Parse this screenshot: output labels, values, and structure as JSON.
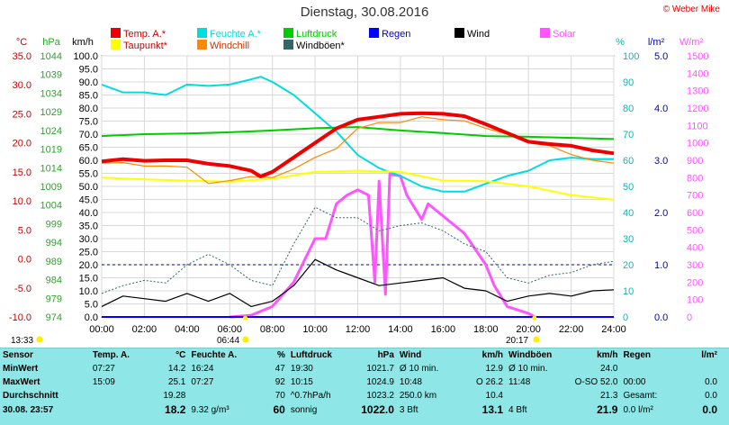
{
  "title": "Dienstag, 30.08.2016",
  "copyright": "© Weber Mike",
  "legend": [
    {
      "label": "Temp. A.*",
      "color": "#ee0000"
    },
    {
      "label": "Feuchte A.*",
      "color": "#00dddd"
    },
    {
      "label": "Luftdruck",
      "color": "#00cc00"
    },
    {
      "label": "Regen",
      "color": "#0000ff"
    },
    {
      "label": "Wind",
      "color": "#000000"
    },
    {
      "label": "Solar",
      "color": "#ff55ff"
    },
    {
      "label": "Taupunkt*",
      "color": "#ffff00"
    },
    {
      "label": "Windchill",
      "color": "#ff8800"
    },
    {
      "label": "Windböen*",
      "color": "#336666"
    }
  ],
  "axis_units": {
    "temp": "°C",
    "pressure": "hPa",
    "wind": "km/h",
    "humidity": "%",
    "rain": "l/m²",
    "solar": "W/m²"
  },
  "axis_ticks": {
    "temp": [
      "35.0",
      "30.0",
      "25.0",
      "20.0",
      "15.0",
      "10.0",
      "5.0",
      "0.0",
      "-5.0",
      "-10.0"
    ],
    "pressure": [
      "1044",
      "1039",
      "1034",
      "1029",
      "1024",
      "1019",
      "1014",
      "1009",
      "1004",
      "999",
      "994",
      "989",
      "984",
      "979",
      "974"
    ],
    "wind": [
      "100.0",
      "95.0",
      "90.0",
      "85.0",
      "80.0",
      "75.0",
      "70.0",
      "65.0",
      "60.0",
      "55.0",
      "50.0",
      "45.0",
      "40.0",
      "35.0",
      "30.0",
      "25.0",
      "20.0",
      "15.0",
      "10.0",
      "5.0",
      "0.0"
    ],
    "humidity": [
      "100",
      "90",
      "80",
      "70",
      "60",
      "50",
      "40",
      "30",
      "20",
      "10",
      "0"
    ],
    "rain": [
      "5.0",
      "4.0",
      "3.0",
      "2.0",
      "1.0",
      "0.0"
    ],
    "solar": [
      "1500",
      "1400",
      "1300",
      "1200",
      "1100",
      "1000",
      "900",
      "800",
      "700",
      "600",
      "500",
      "400",
      "300",
      "200",
      "100",
      "0"
    ],
    "time": [
      "00:00",
      "02:00",
      "04:00",
      "06:00",
      "08:00",
      "10:00",
      "12:00",
      "14:00",
      "16:00",
      "18:00",
      "20:00",
      "22:00",
      "24:00"
    ]
  },
  "sun": {
    "sunrise": "06:44",
    "sunset": "20:17",
    "moonrise": "13:33"
  },
  "chart_data": {
    "type": "line",
    "x_unit": "hour",
    "xlim": [
      0,
      24
    ],
    "series": [
      {
        "name": "Temp. A.*",
        "axis": "temp",
        "ylim": [
          -10,
          35
        ],
        "color": "#ee0000",
        "points": [
          [
            0,
            16.8
          ],
          [
            1,
            17.2
          ],
          [
            2,
            16.9
          ],
          [
            3,
            17
          ],
          [
            4,
            17
          ],
          [
            5,
            16.4
          ],
          [
            6,
            16
          ],
          [
            7,
            15.2
          ],
          [
            7.45,
            14.2
          ],
          [
            8,
            15
          ],
          [
            9,
            17.5
          ],
          [
            10,
            20
          ],
          [
            11,
            22.5
          ],
          [
            12,
            24
          ],
          [
            13,
            24.5
          ],
          [
            14,
            25
          ],
          [
            15,
            25.1
          ],
          [
            16,
            25
          ],
          [
            17,
            24.6
          ],
          [
            18,
            23.2
          ],
          [
            19,
            21.7
          ],
          [
            20,
            20.2
          ],
          [
            21,
            19.8
          ],
          [
            22,
            19.5
          ],
          [
            23,
            18.7
          ],
          [
            24,
            18.2
          ]
        ]
      },
      {
        "name": "Taupunkt*",
        "axis": "temp",
        "ylim": [
          -10,
          35
        ],
        "color": "#ffff00",
        "points": [
          [
            0,
            14
          ],
          [
            2,
            13.7
          ],
          [
            4,
            13.5
          ],
          [
            6,
            13.3
          ],
          [
            8,
            13.8
          ],
          [
            10,
            15
          ],
          [
            12,
            15.2
          ],
          [
            14,
            15
          ],
          [
            16,
            13.5
          ],
          [
            18,
            13.4
          ],
          [
            20,
            12.5
          ],
          [
            22,
            11
          ],
          [
            24,
            10.2
          ]
        ]
      },
      {
        "name": "Windchill",
        "axis": "temp",
        "ylim": [
          -10,
          35
        ],
        "color": "#ff8800",
        "points": [
          [
            0,
            16.5
          ],
          [
            1,
            16.6
          ],
          [
            2,
            16
          ],
          [
            3,
            16
          ],
          [
            4,
            15.8
          ],
          [
            5,
            13
          ],
          [
            6,
            13.5
          ],
          [
            7,
            14.2
          ],
          [
            8,
            14
          ],
          [
            9,
            15.5
          ],
          [
            10,
            17.5
          ],
          [
            11,
            19
          ],
          [
            12,
            22.5
          ],
          [
            13,
            23.5
          ],
          [
            14,
            23.5
          ],
          [
            15,
            24.5
          ],
          [
            16,
            24
          ],
          [
            17,
            23.8
          ],
          [
            18,
            22.5
          ],
          [
            19,
            21.5
          ],
          [
            20,
            20
          ],
          [
            21,
            19.5
          ],
          [
            22,
            18
          ],
          [
            23,
            17
          ],
          [
            24,
            16.5
          ]
        ]
      },
      {
        "name": "Feuchte A.*",
        "axis": "humidity",
        "ylim": [
          0,
          100
        ],
        "color": "#00dddd",
        "points": [
          [
            0,
            89
          ],
          [
            1,
            86
          ],
          [
            2,
            86
          ],
          [
            3,
            85
          ],
          [
            4,
            89
          ],
          [
            5,
            88.5
          ],
          [
            6,
            89
          ],
          [
            7,
            91
          ],
          [
            7.45,
            92
          ],
          [
            8,
            90
          ],
          [
            9,
            85
          ],
          [
            10,
            78
          ],
          [
            11,
            71
          ],
          [
            12,
            62
          ],
          [
            13,
            57
          ],
          [
            14,
            54
          ],
          [
            15,
            50
          ],
          [
            16,
            48
          ],
          [
            17,
            48
          ],
          [
            18,
            51
          ],
          [
            19,
            54
          ],
          [
            20,
            56
          ],
          [
            21,
            60
          ],
          [
            22,
            61
          ],
          [
            23,
            60.5
          ],
          [
            24,
            60.5
          ]
        ]
      },
      {
        "name": "Luftdruck",
        "axis": "pressure",
        "ylim": [
          974,
          1044
        ],
        "color": "#00cc00",
        "points": [
          [
            0,
            1022.5
          ],
          [
            2,
            1023
          ],
          [
            4,
            1023.2
          ],
          [
            6,
            1023.5
          ],
          [
            8,
            1024
          ],
          [
            10,
            1024.6
          ],
          [
            12,
            1024.9
          ],
          [
            14,
            1024
          ],
          [
            16,
            1023.3
          ],
          [
            18,
            1022.5
          ],
          [
            20,
            1022.3
          ],
          [
            22,
            1022
          ],
          [
            24,
            1021.7
          ]
        ]
      },
      {
        "name": "Wind",
        "axis": "wind",
        "ylim": [
          0,
          100
        ],
        "color": "#000000",
        "points": [
          [
            0,
            4
          ],
          [
            1,
            8
          ],
          [
            2,
            7
          ],
          [
            3,
            6
          ],
          [
            4,
            9
          ],
          [
            5,
            6
          ],
          [
            6,
            9
          ],
          [
            7,
            4
          ],
          [
            8,
            6
          ],
          [
            9,
            12
          ],
          [
            10,
            22
          ],
          [
            11,
            18
          ],
          [
            12,
            15
          ],
          [
            13,
            12
          ],
          [
            14,
            13
          ],
          [
            15,
            14
          ],
          [
            16,
            15
          ],
          [
            17,
            11
          ],
          [
            18,
            10
          ],
          [
            19,
            6
          ],
          [
            20,
            8
          ],
          [
            21,
            9
          ],
          [
            22,
            8
          ],
          [
            23,
            10
          ],
          [
            24,
            10.4
          ]
        ]
      },
      {
        "name": "Windböen*",
        "axis": "wind",
        "ylim": [
          0,
          100
        ],
        "color": "#336666",
        "points": [
          [
            0,
            9
          ],
          [
            1,
            12
          ],
          [
            2,
            14
          ],
          [
            3,
            13
          ],
          [
            4,
            20
          ],
          [
            5,
            24
          ],
          [
            6,
            20
          ],
          [
            7,
            14
          ],
          [
            8,
            12
          ],
          [
            9,
            28
          ],
          [
            10,
            42
          ],
          [
            11,
            38
          ],
          [
            12,
            38
          ],
          [
            13,
            33
          ],
          [
            14,
            35
          ],
          [
            15,
            36
          ],
          [
            16,
            33
          ],
          [
            17,
            28
          ],
          [
            18,
            25
          ],
          [
            19,
            15
          ],
          [
            20,
            13
          ],
          [
            21,
            16
          ],
          [
            22,
            17
          ],
          [
            23,
            20
          ],
          [
            24,
            21.3
          ]
        ]
      },
      {
        "name": "Regen",
        "axis": "rain",
        "ylim": [
          0,
          5
        ],
        "color": "#0000ff",
        "points": [
          [
            0,
            0
          ],
          [
            24,
            0
          ]
        ]
      },
      {
        "name": "Solar",
        "axis": "solar",
        "ylim": [
          0,
          1500
        ],
        "color": "#ff55ff",
        "points": [
          [
            6,
            0
          ],
          [
            7,
            10
          ],
          [
            8,
            60
          ],
          [
            9,
            200
          ],
          [
            10,
            450
          ],
          [
            10.5,
            450
          ],
          [
            11,
            650
          ],
          [
            11.5,
            700
          ],
          [
            12,
            730
          ],
          [
            12.5,
            700
          ],
          [
            12.8,
            200
          ],
          [
            13,
            780
          ],
          [
            13.3,
            130
          ],
          [
            13.5,
            820
          ],
          [
            14,
            810
          ],
          [
            14.3,
            700
          ],
          [
            15,
            560
          ],
          [
            15.3,
            650
          ],
          [
            16,
            580
          ],
          [
            17,
            480
          ],
          [
            18,
            300
          ],
          [
            18.4,
            180
          ],
          [
            19,
            60
          ],
          [
            20,
            20
          ],
          [
            20.3,
            0
          ]
        ]
      }
    ],
    "reference_lines": [
      {
        "axis": "rain",
        "value": 1.0,
        "style": "dashed",
        "color": "#0000aa"
      }
    ]
  },
  "stats": {
    "headers": [
      "Sensor",
      "Temp. A.",
      "°C",
      "Feuchte A.",
      "%",
      "Luftdruck",
      "hPa",
      "Wind",
      "km/h",
      "Windböen",
      "km/h",
      "Regen",
      "l/m²"
    ],
    "rows": [
      {
        "label": "MinWert",
        "cells": [
          "07:27",
          "14.2",
          "16:24",
          "47",
          "19:30",
          "1021.7",
          "Ø 10 min.",
          "12.9",
          "Ø 10 min.",
          "24.0",
          "",
          ""
        ]
      },
      {
        "label": "MaxWert",
        "cells": [
          "15:09",
          "25.1",
          "07:27",
          "92",
          "10:15",
          "1024.9",
          "10:48",
          "O 26.2",
          "11:48",
          "O-SO 52.0",
          "00:00",
          "0.0"
        ]
      },
      {
        "label": "Durchschnitt",
        "cells": [
          "",
          "19.28",
          "",
          "70",
          "^0.7hPa/h",
          "1023.2",
          "250.0 km",
          "10.4",
          "",
          "21.3",
          "Gesamt:",
          "0.0"
        ]
      },
      {
        "label": "30.08. 23:57",
        "cells": [
          "",
          "18.2",
          "9.32 g/m³",
          "60",
          "sonnig",
          "1022.0",
          "3 Bft",
          "13.1",
          "4 Bft",
          "21.9",
          "0.0 l/m²",
          "0.0"
        ]
      }
    ]
  }
}
